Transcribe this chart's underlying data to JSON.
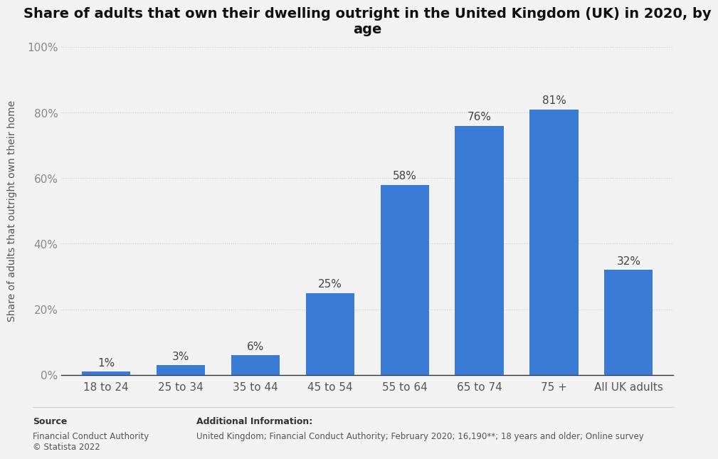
{
  "categories": [
    "18 to 24",
    "25 to 34",
    "35 to 44",
    "45 to 54",
    "55 to 64",
    "65 to 74",
    "75 +",
    "All UK adults"
  ],
  "values": [
    1,
    3,
    6,
    25,
    58,
    76,
    81,
    32
  ],
  "bar_color": "#3a7bd5",
  "title": "Share of adults that own their dwelling outright in the United Kingdom (UK) in 2020, by\nage",
  "ylabel": "Share of adults that outright own their home",
  "ylim": [
    0,
    100
  ],
  "yticks": [
    0,
    20,
    40,
    60,
    80,
    100
  ],
  "background_color": "#f2f2f2",
  "plot_bg_color": "#f2f2f2",
  "source_label": "Source",
  "source_body": "Financial Conduct Authority\n© Statista 2022",
  "additional_label": "Additional Information:",
  "additional_body": "United Kingdom; Financial Conduct Authority; February 2020; 16,190**; 18 years and older; Online survey",
  "label_fontsize": 10,
  "value_label_fontsize": 11,
  "tick_fontsize": 11,
  "title_fontsize": 14
}
